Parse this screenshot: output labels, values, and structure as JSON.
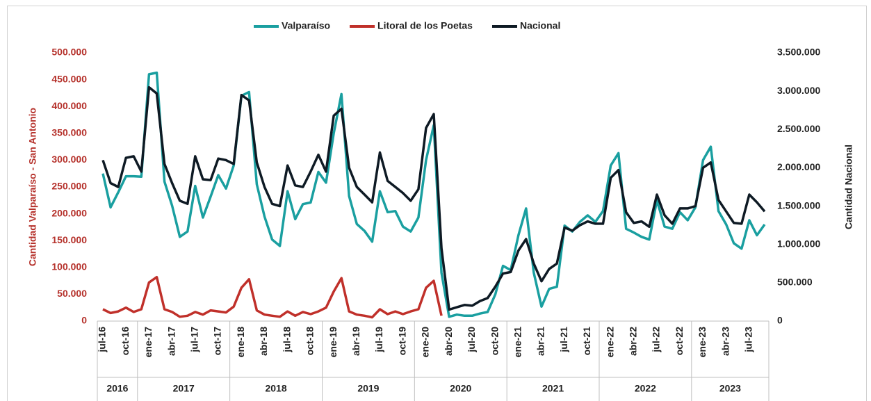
{
  "chart_data": {
    "type": "line",
    "categories": [
      "jul-16",
      null,
      null,
      "oct-16",
      null,
      null,
      "ene-17",
      null,
      null,
      "abr-17",
      null,
      null,
      "jul-17",
      null,
      null,
      "oct-17",
      null,
      null,
      "ene-18",
      null,
      null,
      "abr-18",
      null,
      null,
      "jul-18",
      null,
      null,
      "oct-18",
      null,
      null,
      "ene-19",
      null,
      null,
      "abr-19",
      null,
      null,
      "jul-19",
      null,
      null,
      "oct-19",
      null,
      null,
      "ene-20",
      null,
      null,
      "abr-20",
      null,
      null,
      "jul-20",
      null,
      null,
      "oct-20",
      null,
      null,
      "ene-21",
      null,
      null,
      "abr-21",
      null,
      null,
      "jul-21",
      null,
      null,
      "oct-21",
      null,
      null,
      "ene-22",
      null,
      null,
      "abr-22",
      null,
      null,
      "jul-22",
      null,
      null,
      "oct-22",
      null,
      null,
      "ene-23",
      null,
      null,
      "abr-23",
      null,
      null,
      "jul-23",
      null,
      null
    ],
    "years": [
      "2016",
      "2017",
      "2018",
      "2019",
      "2020",
      "2021",
      "2022",
      "2023"
    ],
    "y_label": "Cantidad Valparaíso - San Antonio",
    "y2_label": "Cantidad Nacional",
    "ylim": [
      0,
      500000
    ],
    "yticks": [
      0,
      {
        "value": 50000,
        "label": "50.000"
      },
      {
        "value": 100000,
        "label": "100.000"
      },
      {
        "value": 150000,
        "label": "150.000"
      },
      {
        "value": 200000,
        "label": "200.000"
      },
      {
        "value": 250000,
        "label": "250.000"
      },
      {
        "value": 300000,
        "label": "300.000"
      },
      {
        "value": 350000,
        "label": "350.000"
      },
      {
        "value": 400000,
        "label": "400.000"
      },
      {
        "value": 450000,
        "label": "450.000"
      },
      {
        "value": 500000,
        "label": "500.000"
      }
    ],
    "y2lim": [
      0,
      3500000
    ],
    "y2ticks": [
      0,
      {
        "value": 500000,
        "label": "500.000"
      },
      {
        "value": 1000000,
        "label": "1.000.000"
      },
      {
        "value": 1500000,
        "label": "1.500.000"
      },
      {
        "value": 2000000,
        "label": "2.000.000"
      },
      {
        "value": 2500000,
        "label": "2.500.000"
      },
      {
        "value": 3000000,
        "label": "3.000.000"
      },
      {
        "value": 3500000,
        "label": "3.500.000"
      }
    ],
    "legend": "top",
    "series": [
      {
        "name": "Valparaíso",
        "color": "#1a9fa0",
        "values": [
          275000,
          212000,
          240000,
          270000,
          270000,
          269000,
          460000,
          463000,
          260000,
          215000,
          157000,
          167000,
          252000,
          193000,
          232000,
          272000,
          247000,
          290000,
          420000,
          427000,
          255000,
          195000,
          152000,
          140000,
          242000,
          190000,
          218000,
          221000,
          278000,
          258000,
          350000,
          423000,
          233000,
          181000,
          168000,
          148000,
          242000,
          203000,
          205000,
          176000,
          167000,
          193000,
          300000,
          365000,
          90000,
          8000,
          12000,
          10000,
          10000,
          14000,
          17000,
          50000,
          103000,
          95000,
          160000,
          210000,
          90000,
          27000,
          60000,
          64000,
          178000,
          167000,
          185000,
          197000,
          185000,
          205000,
          290000,
          313000,
          172000,
          165000,
          157000,
          152000,
          225000,
          176000,
          172000,
          203000,
          188000,
          212000,
          300000,
          325000,
          205000,
          180000,
          145000,
          135000,
          188000,
          160000,
          180000
        ]
      },
      {
        "name": "Litoral de los Poetas",
        "color": "#c0302a",
        "values": [
          22000,
          15000,
          18000,
          25000,
          17000,
          22000,
          72000,
          82000,
          22000,
          17000,
          8000,
          10000,
          17000,
          12000,
          20000,
          18000,
          16000,
          27000,
          62000,
          78000,
          20000,
          12000,
          10000,
          8000,
          18000,
          10000,
          17000,
          13000,
          18000,
          25000,
          55000,
          80000,
          18000,
          12000,
          10000,
          7000,
          22000,
          13000,
          18000,
          13000,
          18000,
          22000,
          62000,
          75000,
          10000,
          null,
          null,
          null,
          null,
          null,
          null,
          null,
          null,
          null,
          null,
          null,
          null,
          null,
          null,
          null,
          null,
          null,
          null,
          null,
          null,
          null,
          null,
          null,
          null,
          null,
          null,
          null,
          null,
          null,
          null,
          null,
          null,
          null,
          null,
          null,
          null,
          null,
          null,
          null,
          null,
          null,
          null
        ]
      },
      {
        "name": "Nacional",
        "color": "#0e1a24",
        "axis": "y2",
        "values": [
          2100000,
          1800000,
          1750000,
          2130000,
          2150000,
          1950000,
          3050000,
          2970000,
          2050000,
          1800000,
          1570000,
          1530000,
          2150000,
          1850000,
          1840000,
          2120000,
          2100000,
          2050000,
          2950000,
          2880000,
          2070000,
          1750000,
          1530000,
          1500000,
          2030000,
          1770000,
          1750000,
          1950000,
          2170000,
          1950000,
          2680000,
          2770000,
          2000000,
          1750000,
          1650000,
          1550000,
          2200000,
          1830000,
          1750000,
          1670000,
          1570000,
          1720000,
          2520000,
          2700000,
          950000,
          150000,
          180000,
          210000,
          200000,
          260000,
          300000,
          450000,
          620000,
          640000,
          920000,
          1070000,
          750000,
          520000,
          680000,
          750000,
          1220000,
          1180000,
          1250000,
          1300000,
          1270000,
          1270000,
          1870000,
          1970000,
          1420000,
          1280000,
          1300000,
          1230000,
          1650000,
          1380000,
          1270000,
          1470000,
          1470000,
          1500000,
          2000000,
          2070000,
          1580000,
          1430000,
          1280000,
          1270000,
          1650000,
          1550000,
          1430000
        ]
      }
    ]
  }
}
